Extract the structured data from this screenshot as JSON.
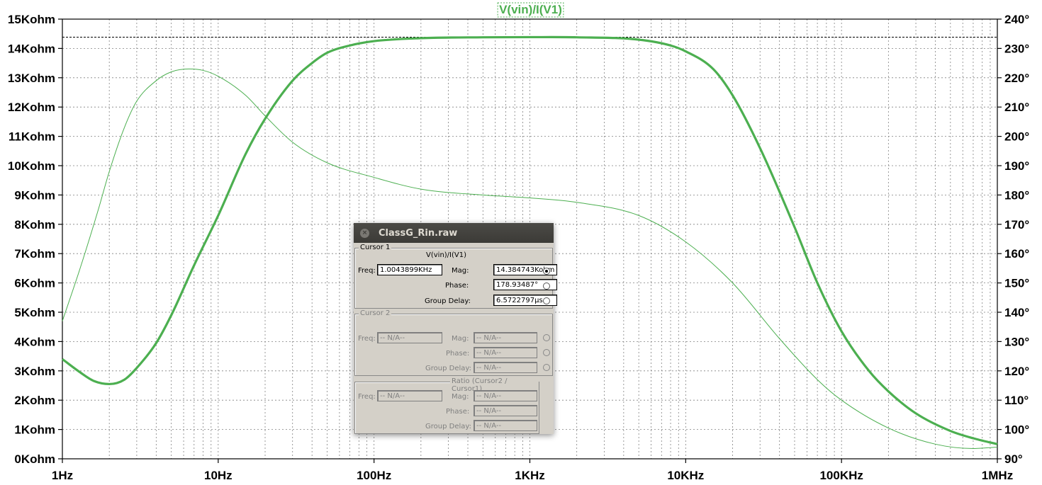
{
  "chart_data": {
    "type": "line",
    "title": "V(vin)/I(V1)",
    "x_axis": {
      "scale": "log",
      "range": [
        1,
        1000000
      ],
      "tick_labels": [
        "1Hz",
        "10Hz",
        "100Hz",
        "1KHz",
        "10KHz",
        "100KHz",
        "1MHz"
      ],
      "tick_values": [
        1,
        10,
        100,
        1000,
        10000,
        100000,
        1000000
      ]
    },
    "y_left": {
      "range": [
        0,
        15
      ],
      "tick_labels": [
        "0Kohm",
        "1Kohm",
        "2Kohm",
        "3Kohm",
        "4Kohm",
        "5Kohm",
        "6Kohm",
        "7Kohm",
        "8Kohm",
        "9Kohm",
        "10Kohm",
        "11Kohm",
        "12Kohm",
        "13Kohm",
        "14Kohm",
        "15Kohm"
      ]
    },
    "y_right": {
      "range": [
        90,
        240
      ],
      "tick_labels": [
        "90°",
        "100°",
        "110°",
        "120°",
        "130°",
        "140°",
        "150°",
        "160°",
        "170°",
        "180°",
        "190°",
        "200°",
        "210°",
        "220°",
        "230°",
        "240°"
      ]
    },
    "grid": true,
    "cursor_reference_kohm": 14.3847,
    "series": [
      {
        "name": "magnitude",
        "axis": "left",
        "unit": "Kohm",
        "color": "#4caf50",
        "points": [
          [
            1,
            3.4
          ],
          [
            1.3,
            2.95
          ],
          [
            1.6,
            2.65
          ],
          [
            2,
            2.55
          ],
          [
            2.5,
            2.7
          ],
          [
            3,
            3.1
          ],
          [
            4,
            3.95
          ],
          [
            5,
            4.9
          ],
          [
            7,
            6.6
          ],
          [
            10,
            8.3
          ],
          [
            15,
            10.4
          ],
          [
            20,
            11.6
          ],
          [
            30,
            12.9
          ],
          [
            40,
            13.5
          ],
          [
            50,
            13.85
          ],
          [
            70,
            14.1
          ],
          [
            100,
            14.25
          ],
          [
            200,
            14.35
          ],
          [
            500,
            14.38
          ],
          [
            1000,
            14.385
          ],
          [
            2000,
            14.38
          ],
          [
            5000,
            14.3
          ],
          [
            8000,
            14.1
          ],
          [
            10000,
            13.9
          ],
          [
            15000,
            13.3
          ],
          [
            20000,
            12.4
          ],
          [
            30000,
            10.6
          ],
          [
            50000,
            7.9
          ],
          [
            70000,
            6.0
          ],
          [
            100000,
            4.35
          ],
          [
            150000,
            3.0
          ],
          [
            200000,
            2.3
          ],
          [
            300000,
            1.55
          ],
          [
            500000,
            0.95
          ],
          [
            700000,
            0.7
          ],
          [
            1000000,
            0.5
          ]
        ]
      },
      {
        "name": "phase",
        "axis": "right",
        "unit": "°",
        "color": "#4caf50",
        "points": [
          [
            1,
            137
          ],
          [
            1.3,
            155
          ],
          [
            1.7,
            175
          ],
          [
            2,
            188
          ],
          [
            2.5,
            203
          ],
          [
            3,
            212
          ],
          [
            4,
            219
          ],
          [
            5,
            222
          ],
          [
            6.5,
            223
          ],
          [
            8,
            222.5
          ],
          [
            10,
            220.5
          ],
          [
            15,
            214
          ],
          [
            20,
            207
          ],
          [
            30,
            198
          ],
          [
            50,
            191
          ],
          [
            100,
            186
          ],
          [
            200,
            182
          ],
          [
            500,
            180
          ],
          [
            1000,
            179
          ],
          [
            2000,
            177.5
          ],
          [
            5000,
            173
          ],
          [
            10000,
            164
          ],
          [
            20000,
            150
          ],
          [
            40000,
            131
          ],
          [
            70000,
            117
          ],
          [
            100000,
            110
          ],
          [
            200000,
            100.5
          ],
          [
            400000,
            95
          ],
          [
            700000,
            93.5
          ],
          [
            1000000,
            94
          ]
        ]
      }
    ]
  },
  "dialog": {
    "title": "ClassG_Rin.raw",
    "cursor1": {
      "legend": "Cursor 1",
      "trace": "V(vin)/I(V1)",
      "freq_label": "Freq:",
      "freq_value": "1.0043899KHz",
      "mag_label": "Mag:",
      "mag_value": "14.384743Kohm",
      "phase_label": "Phase:",
      "phase_value": "178.93487°",
      "gd_label": "Group Delay:",
      "gd_value": "6.5722797µs"
    },
    "cursor2": {
      "legend": "Cursor 2",
      "freq_label": "Freq:",
      "freq_value": "-- N/A--",
      "mag_label": "Mag:",
      "mag_value": "-- N/A--",
      "phase_label": "Phase:",
      "phase_value": "-- N/A--",
      "gd_label": "Group Delay:",
      "gd_value": "-- N/A--"
    },
    "ratio": {
      "legend": "Ratio (Cursor2 / Cursor1)",
      "freq_label": "Freq:",
      "freq_value": "-- N/A--",
      "mag_label": "Mag:",
      "mag_value": "-- N/A--",
      "phase_label": "Phase:",
      "phase_value": "-- N/A--",
      "gd_label": "Group Delay:",
      "gd_value": "-- N/A--"
    }
  }
}
